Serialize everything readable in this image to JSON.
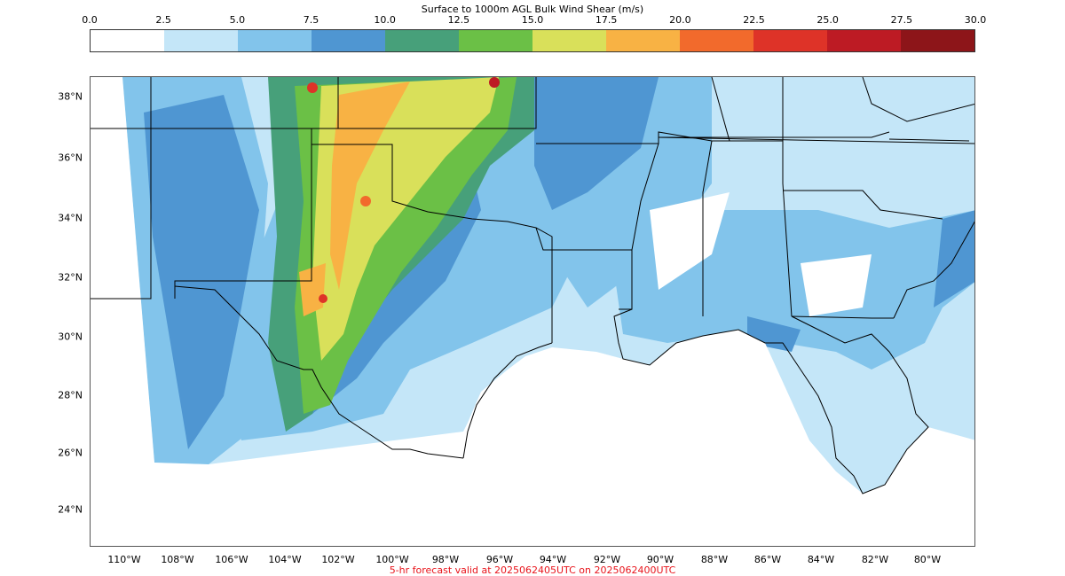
{
  "colorbar": {
    "title": "Surface to 1000m AGL Bulk Wind Shear (m/s)",
    "ticks": [
      "0.0",
      "2.5",
      "5.0",
      "7.5",
      "10.0",
      "12.5",
      "15.0",
      "17.5",
      "20.0",
      "22.5",
      "25.0",
      "27.5",
      "30.0"
    ],
    "colors": [
      "#ffffff",
      "#c4e6f8",
      "#82c4eb",
      "#4f96d2",
      "#47a07a",
      "#6bc046",
      "#d9e05a",
      "#f8b244",
      "#f26a2c",
      "#de3328",
      "#bd1b24",
      "#8d1519"
    ]
  },
  "map": {
    "lat_labels": [
      "38°N",
      "36°N",
      "34°N",
      "32°N",
      "30°N",
      "28°N",
      "26°N",
      "24°N"
    ],
    "lon_labels": [
      "110°W",
      "108°W",
      "106°W",
      "104°W",
      "102°W",
      "100°W",
      "98°W",
      "96°W",
      "94°W",
      "92°W",
      "90°W",
      "88°W",
      "86°W",
      "84°W",
      "82°W",
      "80°W"
    ],
    "border_color": "#000000",
    "domain_fields": "wind-shear-shading"
  },
  "caption": {
    "text": "5-hr forecast valid at 2025062405UTC on 2025062400UTC",
    "color": "#e8141b"
  }
}
